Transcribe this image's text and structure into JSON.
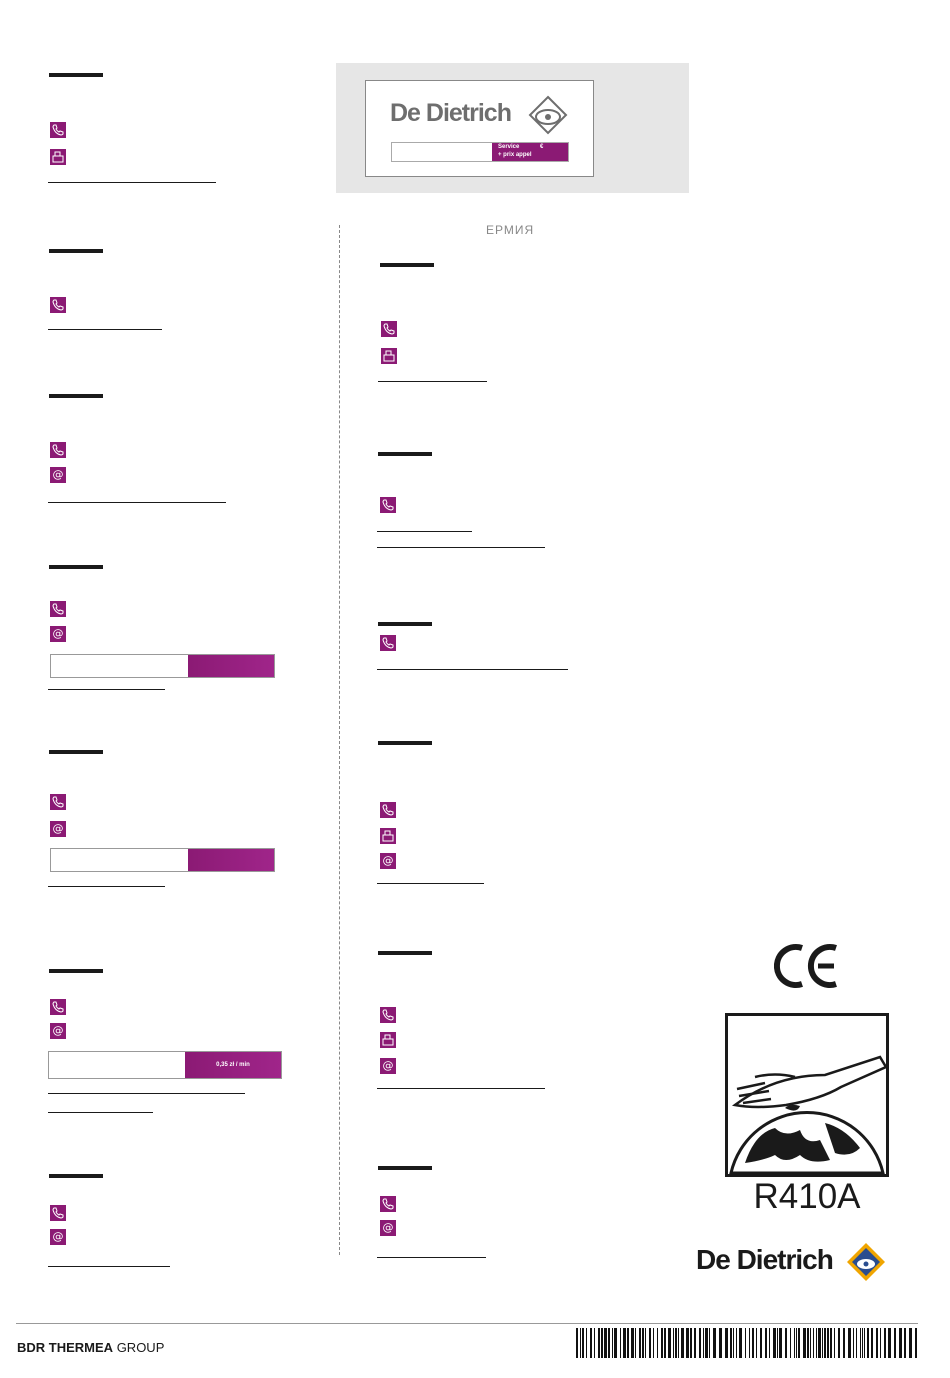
{
  "header_card": {
    "brand": "De Dietrich",
    "service_label": "Service",
    "service_currency": "€",
    "service_note": "+ prix appel"
  },
  "right_heading": "ЕРМИЯ",
  "left_entries": [
    {
      "icons": [
        "phone-icon",
        "fax-icon"
      ],
      "service": null
    },
    {
      "icons": [
        "phone-icon"
      ],
      "service": null
    },
    {
      "icons": [
        "phone-icon",
        "email-icon"
      ],
      "service": null
    },
    {
      "icons": [
        "phone-icon",
        "email-icon"
      ],
      "service": ""
    },
    {
      "icons": [
        "phone-icon",
        "email-icon"
      ],
      "service": ""
    },
    {
      "icons": [
        "phone-icon",
        "email-icon"
      ],
      "service": "0,35 zł / min"
    },
    {
      "icons": [
        "phone-icon",
        "email-icon"
      ],
      "service": null
    }
  ],
  "right_entries": [
    {
      "icons": [
        "phone-icon",
        "fax-icon"
      ]
    },
    {
      "icons": [
        "phone-icon"
      ]
    },
    {
      "icons": [
        "phone-icon"
      ]
    },
    {
      "icons": [
        "phone-icon",
        "fax-icon",
        "email-icon"
      ]
    },
    {
      "icons": [
        "phone-icon",
        "fax-icon",
        "email-icon"
      ]
    },
    {
      "icons": [
        "phone-icon",
        "email-icon"
      ]
    }
  ],
  "refrigerant": "R410A",
  "ce_mark": "CE",
  "brand_bottom": "De Dietrich",
  "footer": {
    "group_bold": "BDR THERMEA",
    "group_light": "GROUP"
  },
  "colors": {
    "accent": "#8b1a74",
    "text": "#1a1a1a",
    "panel": "#e6e6e6"
  }
}
